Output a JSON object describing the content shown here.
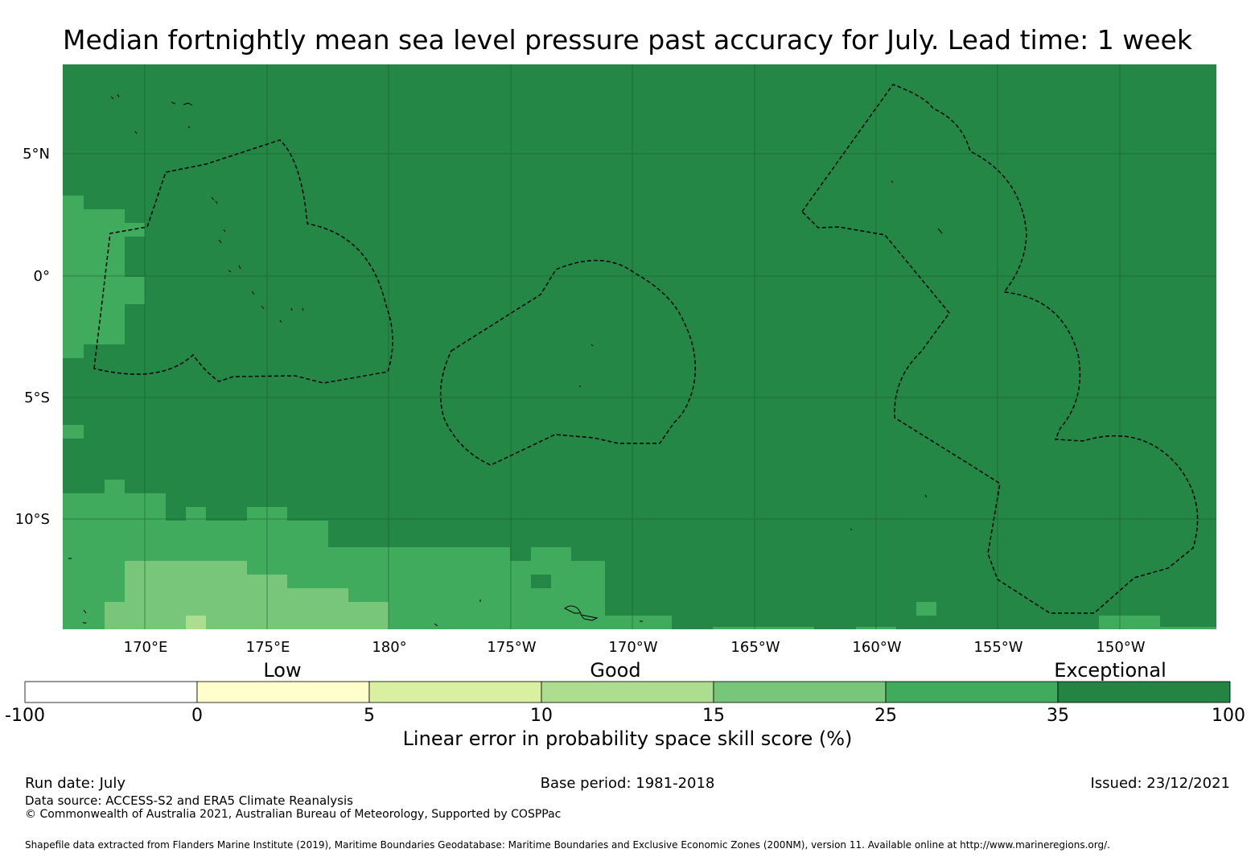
{
  "title": "Median fortnightly mean sea level pressure past accuracy for July. Lead time: 1 week",
  "map": {
    "lat_labels": [
      "5°N",
      "0°",
      "5°S",
      "10°S"
    ],
    "lon_labels": [
      "170°E",
      "175°E",
      "180°",
      "175°W",
      "170°W",
      "165°W",
      "160°W",
      "155°W",
      "150°W"
    ],
    "base_color": "#248745"
  },
  "colorbar": {
    "category_labels": [
      "Low",
      "Good",
      "Exceptional"
    ],
    "tick_labels": [
      "-100",
      "0",
      "5",
      "10",
      "15",
      "25",
      "35",
      "100"
    ],
    "colors": [
      "#ffffff",
      "#ffffcc",
      "#d9f0a3",
      "#addd8e",
      "#78c679",
      "#41ab5d",
      "#238443"
    ],
    "title": "Linear error in probability space skill score (%)"
  },
  "footer": {
    "run_date": "Run date: July",
    "base_period": "Base period: 1981-2018",
    "issued": "Issued: 23/12/2021",
    "data_source": "Data source: ACCESS-S2 and ERA5 Climate Reanalysis",
    "copyright": "© Commonwealth of Australia 2021, Australian Bureau of Meteorology, Supported by COSPPac",
    "shapefile": "Shapefile data extracted from Flanders Marine Institute (2019), Maritime Boundaries Geodatabase: Maritime Boundaries and Exclusive Economic Zones (200NM), version 11. Available online at http://www.marineregions.org/."
  }
}
